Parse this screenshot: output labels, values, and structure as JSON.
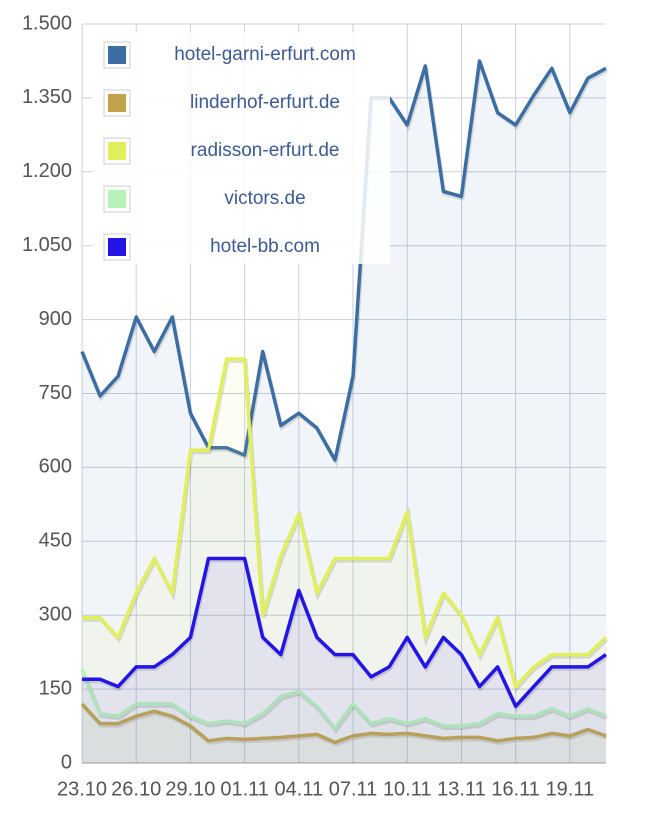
{
  "chart_data": {
    "type": "line",
    "categories": [
      "23.10",
      null,
      null,
      "26.10",
      null,
      null,
      "29.10",
      null,
      null,
      "01.11",
      null,
      null,
      "04.11",
      null,
      null,
      "07.11",
      null,
      null,
      "10.11",
      null,
      null,
      "13.11",
      null,
      null,
      "16.11",
      null,
      null,
      "19.11",
      null,
      null
    ],
    "series": [
      {
        "name": "hotel-garni-erfurt.com",
        "color": "#3d6ea3",
        "values": [
          835,
          745,
          785,
          905,
          835,
          905,
          710,
          640,
          640,
          625,
          835,
          685,
          710,
          680,
          615,
          785,
          1350,
          1350,
          1295,
          1415,
          1160,
          1150,
          1425,
          1320,
          1295,
          1355,
          1410,
          1320,
          1390,
          1410
        ]
      },
      {
        "name": "linderhof-erfurt.de",
        "color": "#c2a24a",
        "values": [
          120,
          80,
          80,
          95,
          105,
          95,
          75,
          45,
          50,
          48,
          50,
          52,
          55,
          58,
          42,
          55,
          60,
          58,
          60,
          55,
          50,
          52,
          52,
          45,
          50,
          52,
          60,
          55,
          68,
          55
        ]
      },
      {
        "name": "radisson-erfurt.de",
        "color": "#e0ef5a",
        "values": [
          295,
          295,
          255,
          345,
          415,
          345,
          635,
          635,
          820,
          820,
          300,
          420,
          505,
          345,
          415,
          415,
          415,
          415,
          510,
          255,
          345,
          300,
          220,
          295,
          155,
          195,
          220,
          220,
          220,
          255
        ]
      },
      {
        "name": "victors.de",
        "color": "#b7f3b7",
        "values": [
          190,
          100,
          95,
          120,
          120,
          120,
          95,
          80,
          85,
          80,
          100,
          135,
          145,
          115,
          70,
          120,
          80,
          90,
          80,
          90,
          75,
          75,
          80,
          100,
          95,
          95,
          110,
          95,
          110,
          95
        ]
      },
      {
        "name": "hotel-bb.com",
        "color": "#2414e6",
        "values": [
          170,
          170,
          155,
          195,
          195,
          220,
          255,
          415,
          415,
          415,
          255,
          220,
          350,
          255,
          220,
          220,
          175,
          195,
          255,
          195,
          255,
          220,
          155,
          195,
          115,
          155,
          195,
          195,
          195,
          220
        ]
      }
    ],
    "ylim": [
      0,
      1500
    ],
    "yticks": [
      0,
      150,
      300,
      450,
      600,
      750,
      900,
      {
        "value": 1050,
        "label": "1.050"
      },
      {
        "value": 1200,
        "label": "1.200"
      },
      {
        "value": 1350,
        "label": "1.350"
      },
      {
        "value": 1500,
        "label": "1.500"
      }
    ],
    "grid": true,
    "legend": "upper left"
  }
}
